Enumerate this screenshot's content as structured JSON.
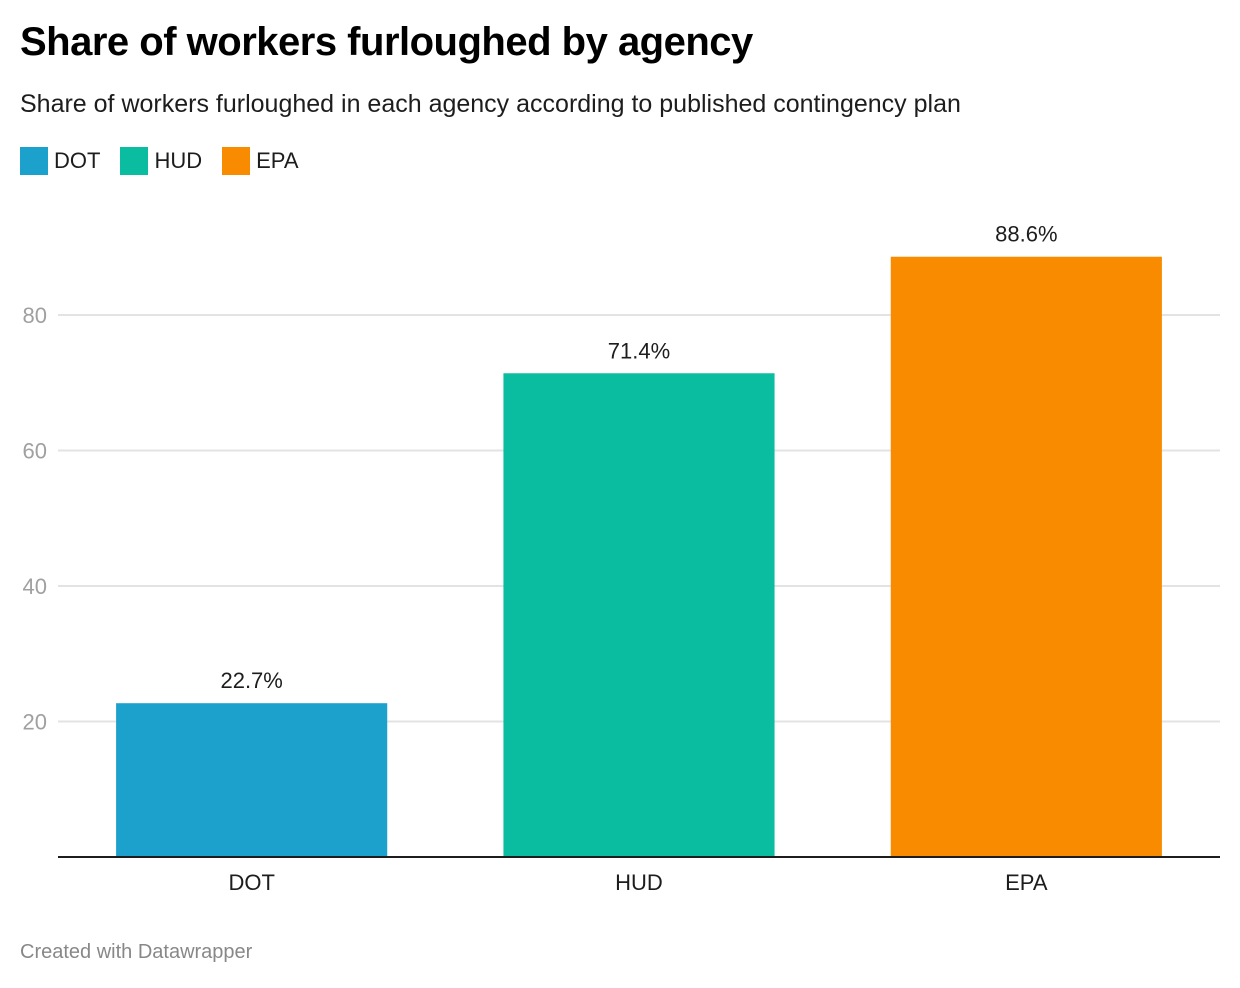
{
  "chart_data": {
    "type": "bar",
    "title": "Share of workers furloughed by agency",
    "subtitle": "Share of workers furloughed in each agency according to published contingency plan",
    "categories": [
      "DOT",
      "HUD",
      "EPA"
    ],
    "values": [
      22.7,
      71.4,
      88.6
    ],
    "data_labels": [
      "22.7%",
      "71.4%",
      "88.6%"
    ],
    "colors": [
      "#1ba1cc",
      "#0abda0",
      "#f98b00"
    ],
    "xlabel": "",
    "ylabel": "",
    "ylim": [
      0,
      95
    ],
    "yticks": [
      20,
      40,
      60,
      80
    ],
    "grid": true,
    "legend": {
      "position": "top-left",
      "entries": [
        {
          "label": "DOT",
          "color": "#1ba1cc"
        },
        {
          "label": "HUD",
          "color": "#0abda0"
        },
        {
          "label": "EPA",
          "color": "#f98b00"
        }
      ]
    }
  },
  "footer": "Created with Datawrapper"
}
